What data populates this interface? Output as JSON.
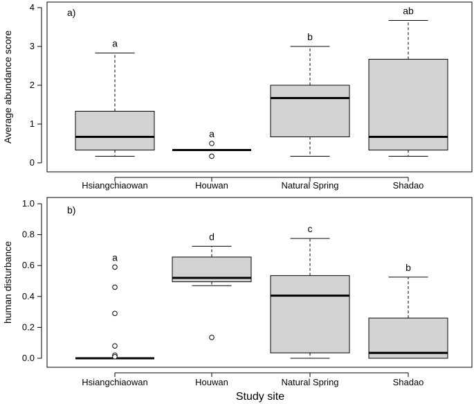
{
  "xlabel": "Study site",
  "chart_data": [
    {
      "type": "boxplot",
      "panel_label": "a)",
      "ylabel": "Average abundance score",
      "ylim": [
        0,
        4
      ],
      "yticks": [
        0,
        1,
        2,
        3,
        4
      ],
      "ytick_labels": [
        "0",
        "1",
        "2",
        "3",
        "4"
      ],
      "categories": [
        "Hsiangchiaowan",
        "Houwan",
        "Natural Spring",
        "Shadao"
      ],
      "boxes": [
        {
          "name": "Hsiangchiaowan",
          "whisker_low": 0.17,
          "q1": 0.33,
          "median": 0.67,
          "q3": 1.33,
          "whisker_high": 2.83,
          "outliers": [],
          "label": "a"
        },
        {
          "name": "Houwan",
          "whisker_low": 0.33,
          "q1": 0.33,
          "median": 0.33,
          "q3": 0.33,
          "whisker_high": 0.33,
          "outliers": [
            0.17,
            0.5
          ],
          "label": "a"
        },
        {
          "name": "Natural Spring",
          "whisker_low": 0.17,
          "q1": 0.67,
          "median": 1.67,
          "q3": 2.0,
          "whisker_high": 3.0,
          "outliers": [],
          "label": "b"
        },
        {
          "name": "Shadao",
          "whisker_low": 0.17,
          "q1": 0.33,
          "median": 0.67,
          "q3": 2.67,
          "whisker_high": 3.67,
          "outliers": [],
          "label": "ab"
        }
      ]
    },
    {
      "type": "boxplot",
      "panel_label": "b)",
      "ylabel": "human disturbance",
      "ylim": [
        0,
        1.0
      ],
      "yticks": [
        0,
        0.2,
        0.4,
        0.6,
        0.8,
        1.0
      ],
      "ytick_labels": [
        "0.0",
        "0.2",
        "0.4",
        "0.6",
        "0.8",
        "1.0"
      ],
      "categories": [
        "Hsiangchiaowan",
        "Houwan",
        "Natural Spring",
        "Shadao"
      ],
      "boxes": [
        {
          "name": "Hsiangchiaowan",
          "whisker_low": 0.0,
          "q1": 0.0,
          "median": 0.0,
          "q3": 0.0,
          "whisker_high": 0.0,
          "outliers": [
            0.59,
            0.46,
            0.29,
            0.08,
            0.02,
            0.01
          ],
          "label": "a"
        },
        {
          "name": "Houwan",
          "whisker_low": 0.47,
          "q1": 0.495,
          "median": 0.52,
          "q3": 0.655,
          "whisker_high": 0.725,
          "outliers": [
            0.135
          ],
          "label": "d"
        },
        {
          "name": "Natural Spring",
          "whisker_low": 0.0,
          "q1": 0.035,
          "median": 0.405,
          "q3": 0.535,
          "whisker_high": 0.775,
          "outliers": [],
          "label": "c"
        },
        {
          "name": "Shadao",
          "whisker_low": 0.0,
          "q1": 0.0,
          "median": 0.035,
          "q3": 0.26,
          "whisker_high": 0.525,
          "outliers": [],
          "label": "b"
        }
      ]
    }
  ]
}
